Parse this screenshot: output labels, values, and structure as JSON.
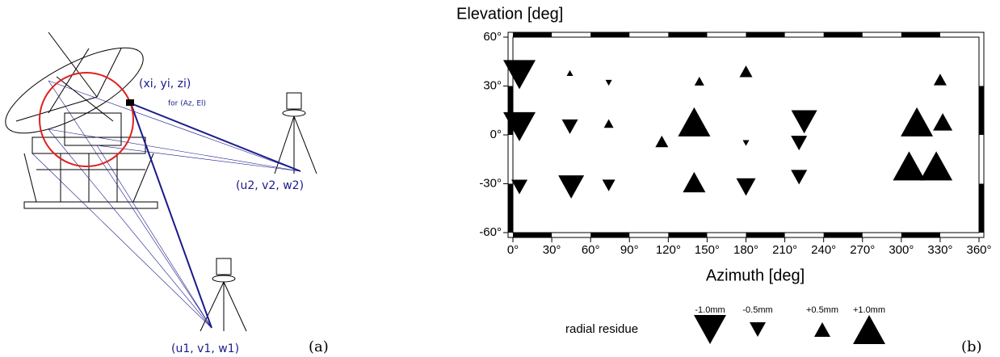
{
  "diagram": {
    "reflector_point": "(xi, yi, zi)",
    "reflector_note": "for (Az, El)",
    "station_2": "(u2, v2, w2)",
    "station_1": "(u1, v1, w1)",
    "panel_label": "(a)"
  },
  "chart_data": {
    "type": "scatter",
    "x_label": "Azimuth [deg]",
    "y_label": "Elevation [deg]",
    "panel_label": "(b)",
    "xlim": [
      0,
      360
    ],
    "ylim": [
      -60,
      60
    ],
    "xticks": [
      {
        "value": 0,
        "label": "0°"
      },
      {
        "value": 30,
        "label": "30°"
      },
      {
        "value": 60,
        "label": "60°"
      },
      {
        "value": 90,
        "label": "90°"
      },
      {
        "value": 120,
        "label": "120°"
      },
      {
        "value": 150,
        "label": "150°"
      },
      {
        "value": 180,
        "label": "180°"
      },
      {
        "value": 210,
        "label": "210°"
      },
      {
        "value": 240,
        "label": "240°"
      },
      {
        "value": 270,
        "label": "270°"
      },
      {
        "value": 300,
        "label": "300°"
      },
      {
        "value": 330,
        "label": "330°"
      },
      {
        "value": 360,
        "label": "360°"
      }
    ],
    "yticks": [
      {
        "value": -60,
        "label": "-60°"
      },
      {
        "value": -30,
        "label": "-30°"
      },
      {
        "value": 0,
        "label": "0°"
      },
      {
        "value": 30,
        "label": "30°"
      },
      {
        "value": 60,
        "label": "60°"
      }
    ],
    "color": "#000000",
    "series": [
      {
        "x": [
          5,
          44,
          74,
          144,
          180,
          330,
          5,
          44,
          74,
          140,
          225,
          312,
          332,
          115,
          180,
          221,
          306,
          327,
          5,
          45,
          74,
          140,
          180,
          221
        ],
        "y": [
          37,
          38,
          32,
          33,
          39,
          34,
          5,
          5,
          7,
          8,
          8,
          8,
          8,
          -4,
          -5,
          -5,
          -19,
          -19,
          -32,
          -32,
          -31,
          -29,
          -32,
          -26
        ],
        "residue": [
          -1.0,
          0.2,
          -0.2,
          0.3,
          0.4,
          0.4,
          -1.0,
          -0.5,
          0.3,
          1.0,
          -0.8,
          1.0,
          0.6,
          0.4,
          -0.2,
          -0.5,
          1.0,
          1.0,
          -0.5,
          -0.8,
          -0.4,
          0.7,
          -0.6,
          -0.5
        ]
      }
    ],
    "size_legend": {
      "title": "radial residue",
      "items": [
        {
          "value": -1.0,
          "label": "-1.0mm"
        },
        {
          "value": -0.5,
          "label": "-0.5mm"
        },
        {
          "value": 0.5,
          "label": "+0.5mm"
        },
        {
          "value": 1.0,
          "label": "+1.0mm"
        }
      ]
    }
  }
}
